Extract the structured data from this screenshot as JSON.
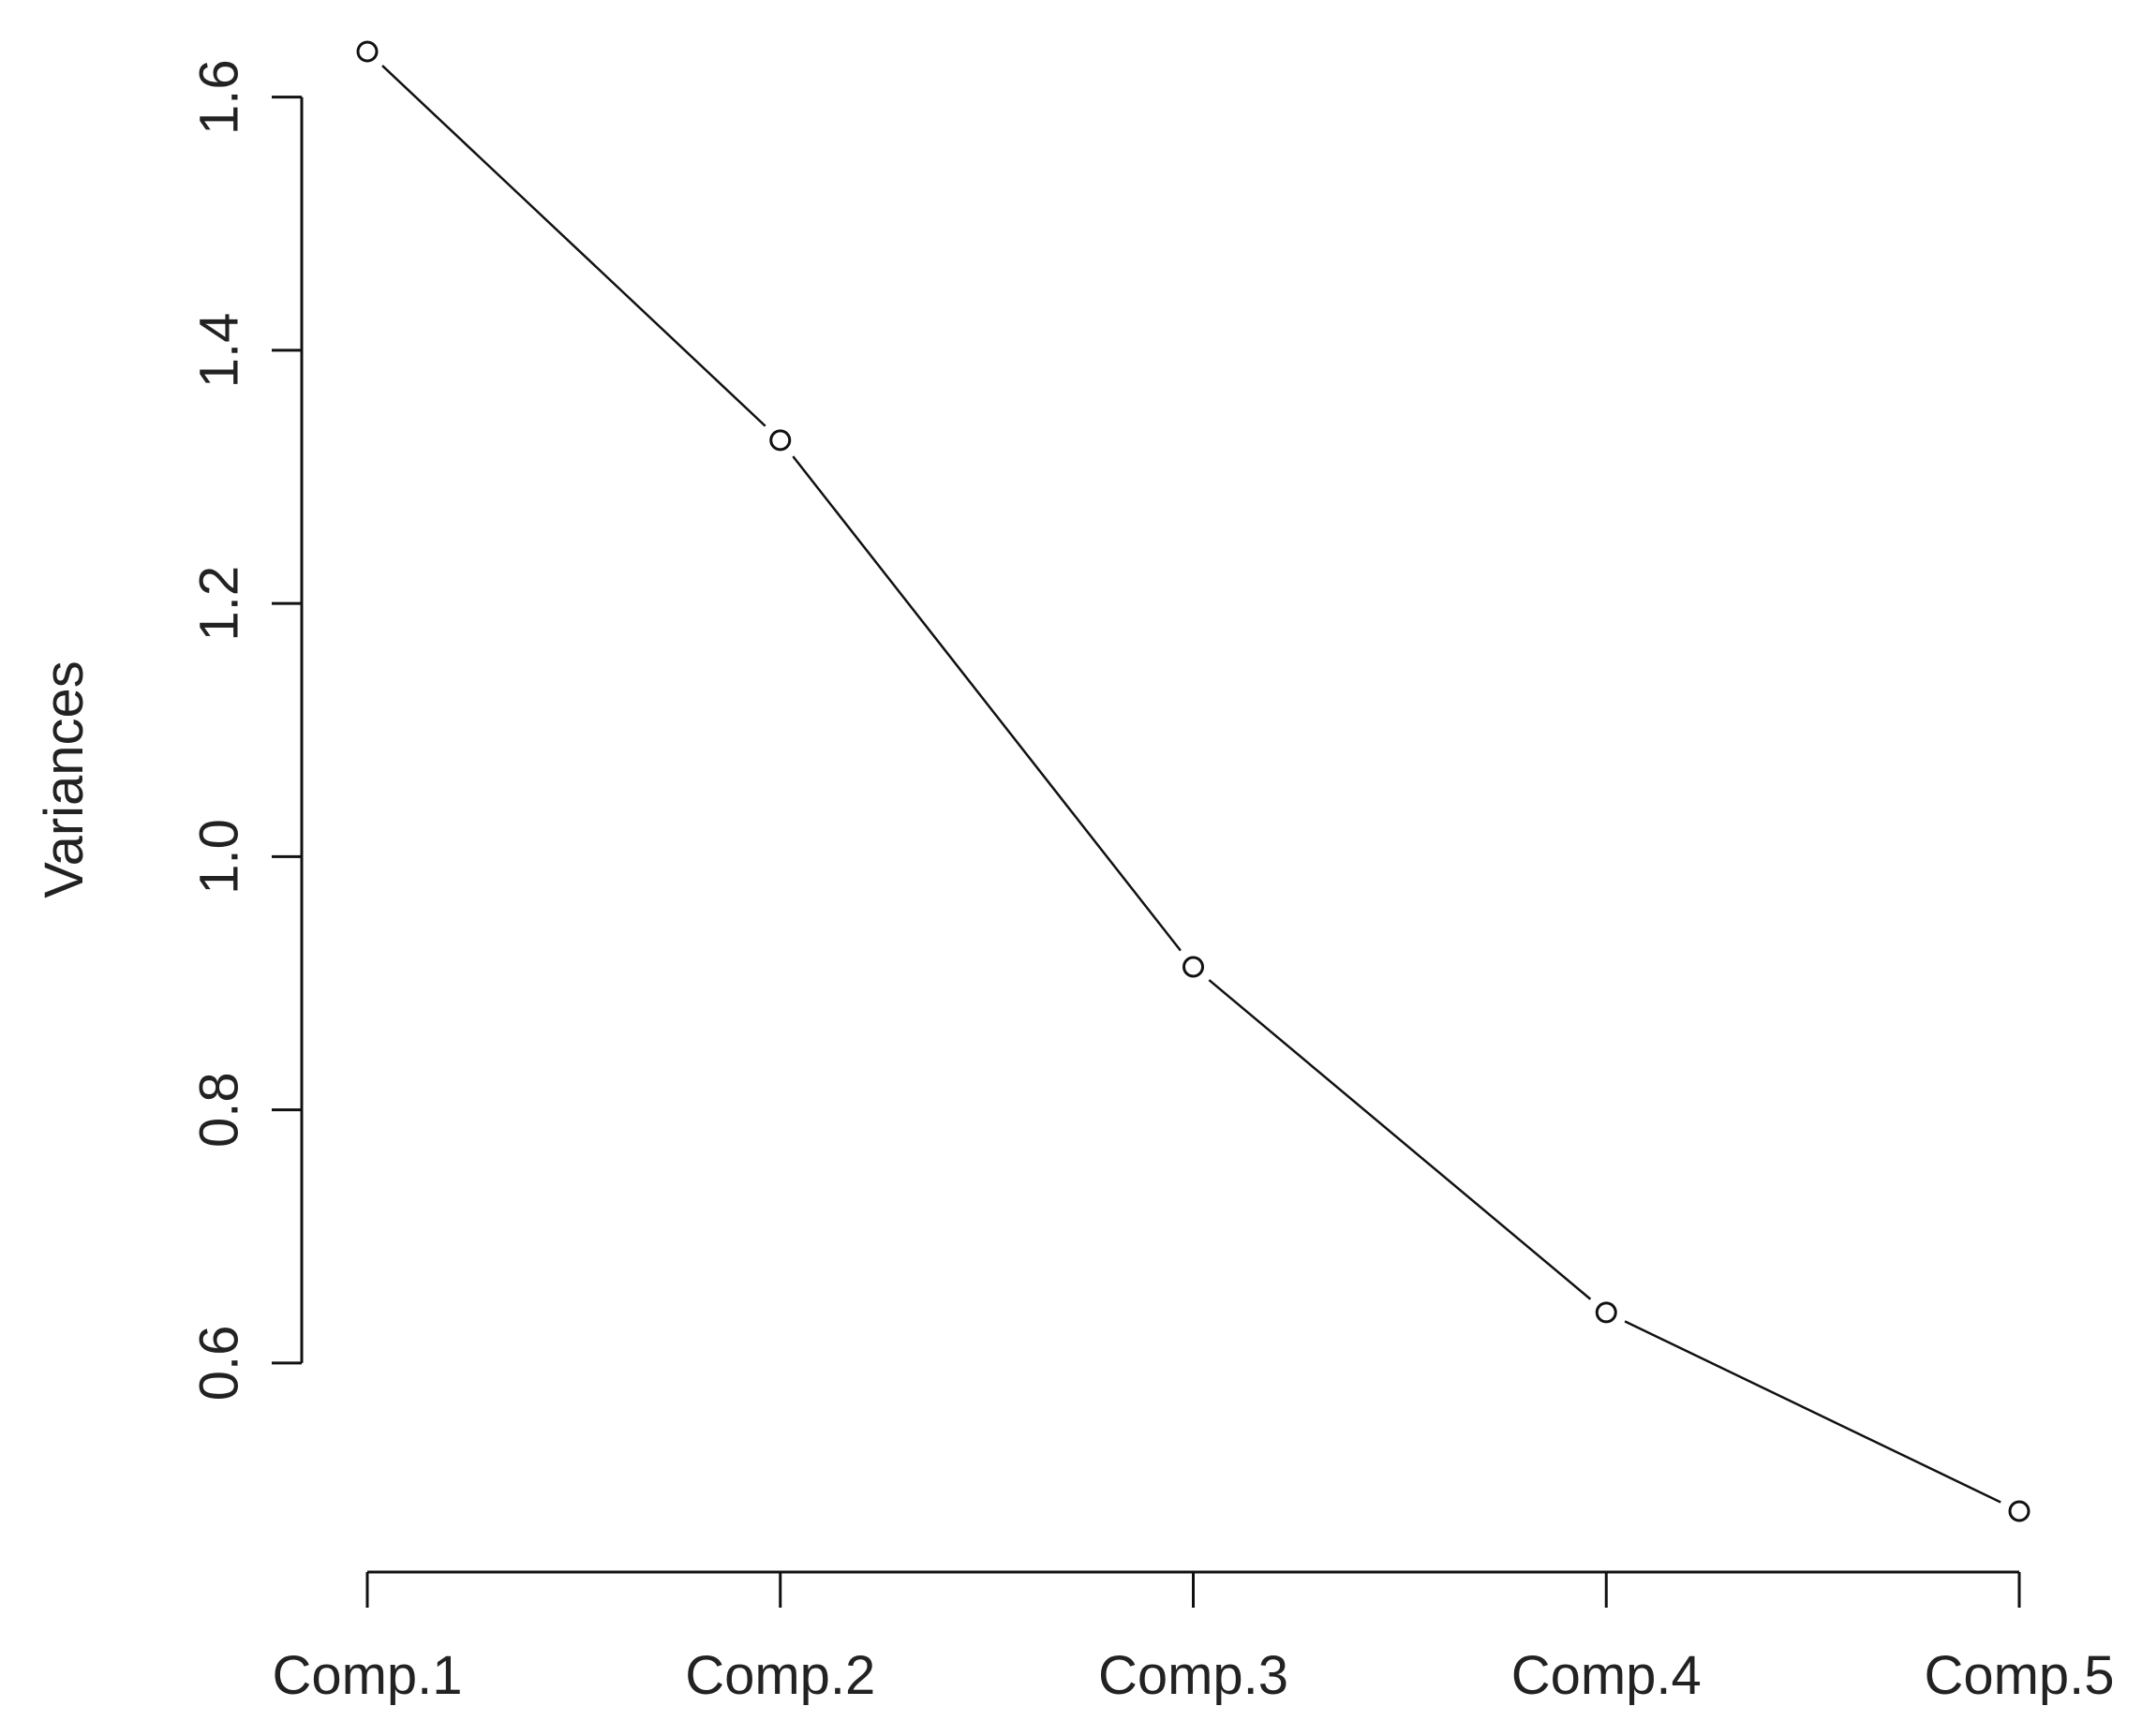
{
  "chart_data": {
    "type": "line",
    "title": "",
    "xlabel": "",
    "ylabel": "Variances",
    "categories": [
      "Comp.1",
      "Comp.2",
      "Comp.3",
      "Comp.4",
      "Comp.5"
    ],
    "values": [
      1.636,
      1.329,
      0.913,
      0.64,
      0.483
    ],
    "ylim": [
      0.483,
      1.636
    ],
    "yticks": [
      "0.6",
      "0.8",
      "1.0",
      "1.2",
      "1.4",
      "1.6"
    ],
    "grid": false,
    "legend": "none",
    "marker": "open-circle",
    "colors": {
      "line": "#111111",
      "axis": "#111111",
      "text": "#222222",
      "background": "#ffffff"
    }
  }
}
